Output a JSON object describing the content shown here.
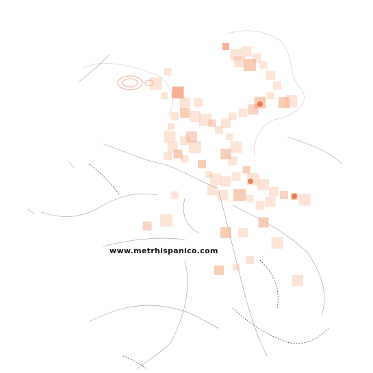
{
  "watermark": "www.metrhispanico.com"
}
